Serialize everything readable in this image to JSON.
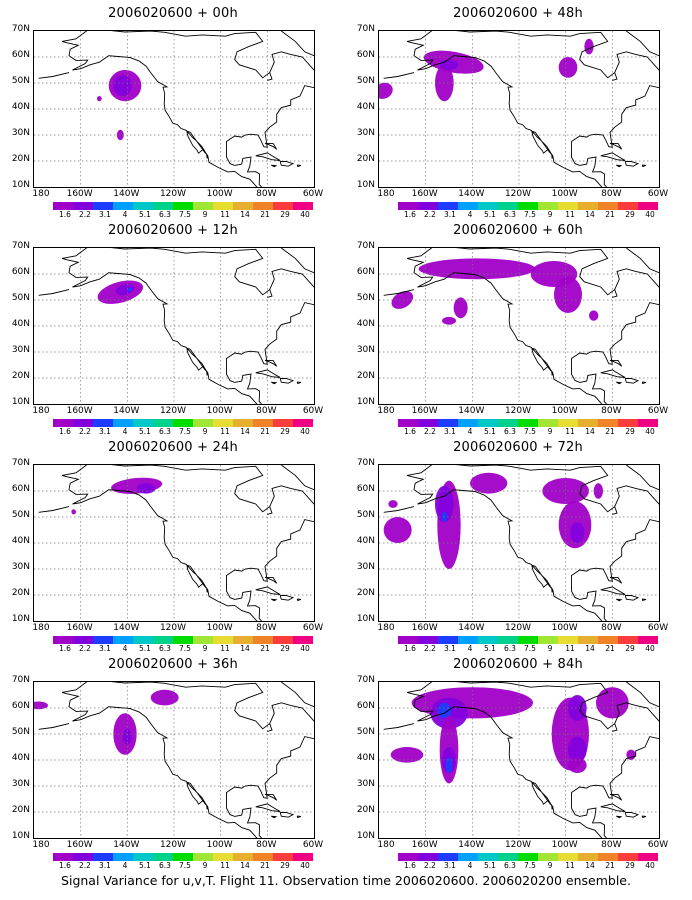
{
  "caption": "Signal Variance for u,v,T. Flight 11. Observation time 2006020600. 2006020200 ensemble.",
  "lat_labels": [
    "70N",
    "60N",
    "50N",
    "40N",
    "30N",
    "20N",
    "10N"
  ],
  "lon_labels": [
    "180",
    "160W",
    "140W",
    "120W",
    "100W",
    "80W",
    "60W"
  ],
  "colorbar": {
    "colors": [
      "#a000c8",
      "#8200dc",
      "#1e3cff",
      "#00a0ff",
      "#00c8c8",
      "#00d28c",
      "#00dc00",
      "#a0e632",
      "#e6dc32",
      "#e6af2d",
      "#f08228",
      "#fa3c3c",
      "#f00082"
    ],
    "labels": [
      "1.6",
      "2.2",
      "3.1",
      "4",
      "5.1",
      "6.3",
      "7.5",
      "9",
      "11",
      "14",
      "21",
      "29",
      "40"
    ]
  },
  "panels": [
    {
      "title": "2006020600 + 00h"
    },
    {
      "title": "2006020600 + 48h"
    },
    {
      "title": "2006020600 + 12h"
    },
    {
      "title": "2006020600 + 60h"
    },
    {
      "title": "2006020600 + 24h"
    },
    {
      "title": "2006020600 + 72h"
    },
    {
      "title": "2006020600 + 36h"
    },
    {
      "title": "2006020600 + 84h"
    }
  ]
}
